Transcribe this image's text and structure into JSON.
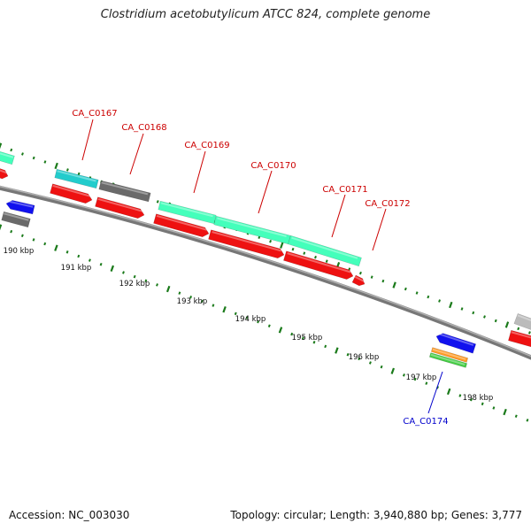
{
  "title": "Clostridium acetobutylicum ATCC 824, complete genome",
  "footer": {
    "accession": "Accession: NC_003030",
    "summary": "Topology: circular; Length: 3,940,880 bp; Genes: 3,777"
  },
  "scale": {
    "kbp_labels": [
      "190 kbp",
      "191 kbp",
      "192 kbp",
      "193 kbp",
      "194 kbp",
      "195 kbp",
      "196 kbp",
      "197 kbp",
      "198 kbp"
    ]
  },
  "gene_labels": [
    {
      "text": "CA_C0167",
      "color": "#cc0000"
    },
    {
      "text": "CA_C0168",
      "color": "#cc0000"
    },
    {
      "text": "CA_C0169",
      "color": "#cc0000"
    },
    {
      "text": "CA_C0170",
      "color": "#cc0000"
    },
    {
      "text": "CA_C0171",
      "color": "#cc0000"
    },
    {
      "text": "CA_C0172",
      "color": "#cc0000"
    },
    {
      "text": "CA_C0174",
      "color": "#0000cc"
    }
  ],
  "colors": {
    "backbone": "#8a8a8a",
    "tick": "#1a7a1a",
    "red": "#ee1111",
    "blue": "#1111ee",
    "teal": "#22cccc",
    "grey": "#6a6a6a",
    "light_grey": "#bbbbbb",
    "mint": "#44ffbb",
    "orange": "#ff9922",
    "green": "#44cc44"
  }
}
